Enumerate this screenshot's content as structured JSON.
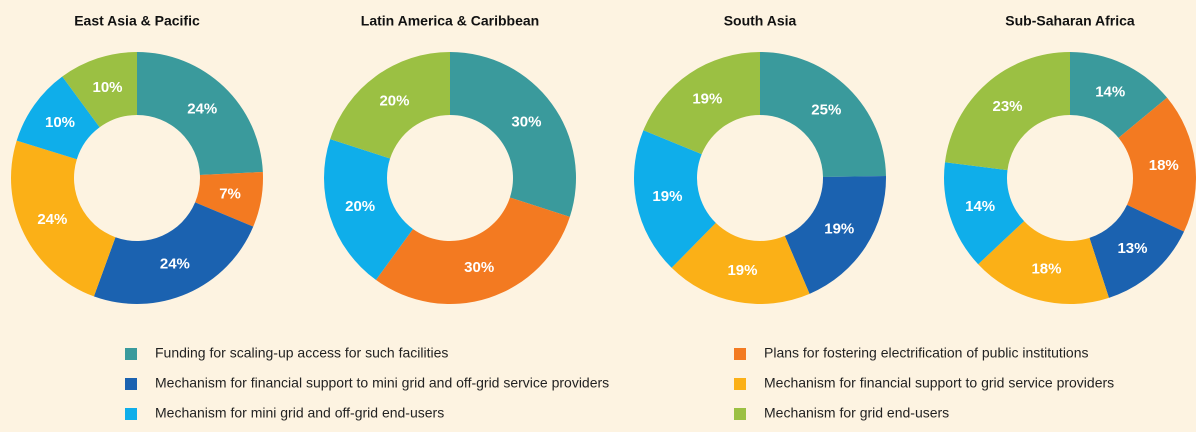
{
  "legend": [
    {
      "name": "Funding for scaling-up access for such facilities",
      "color": "#3a9a9c"
    },
    {
      "name": "Plans for fostering electrification of public institutions",
      "color": "#f37a21"
    },
    {
      "name": "Mechanism for financial support to mini grid and off-grid service providers",
      "color": "#1b62b0"
    },
    {
      "name": "Mechanism for financial support to grid service providers",
      "color": "#fbb017"
    },
    {
      "name": "Mechanism for mini grid and off-grid end-users",
      "color": "#0faeea"
    },
    {
      "name": "Mechanism for grid end-users",
      "color": "#9bc043"
    }
  ],
  "chart_data": [
    {
      "type": "pie",
      "title": "East Asia & Pacific",
      "values": [
        24,
        7,
        24,
        24,
        10,
        10
      ],
      "value_labels": [
        "24%",
        "7%",
        "24%",
        "24%",
        "10%",
        "10%"
      ]
    },
    {
      "type": "pie",
      "title": "Latin America & Caribbean",
      "values": [
        30,
        30,
        null,
        null,
        20,
        20
      ],
      "value_labels": [
        "30%",
        "30%",
        null,
        null,
        "20%",
        "20%"
      ]
    },
    {
      "type": "pie",
      "title": "South Asia",
      "values": [
        25,
        null,
        19,
        19,
        19,
        19
      ],
      "value_labels": [
        "25%",
        null,
        "19%",
        "19%",
        "19%",
        "19%"
      ]
    },
    {
      "type": "pie",
      "title": "Sub-Saharan Africa",
      "values": [
        14,
        18,
        13,
        18,
        14,
        23
      ],
      "value_labels": [
        "14%",
        "18%",
        "13%",
        "18%",
        "14%",
        "23%"
      ]
    }
  ]
}
